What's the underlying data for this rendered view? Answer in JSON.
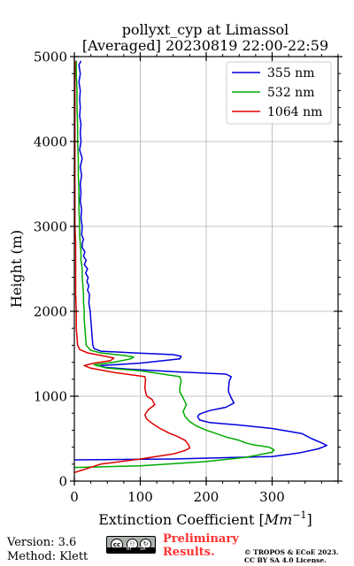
{
  "chart_data": {
    "type": "line",
    "title_line1": "pollyxt_cyp at Limassol",
    "title_line2": "[Averaged] 20230819 22:00-22:59",
    "xlabel_text": "Extinction Coefficient [",
    "xlabel_unit_base": "Mm",
    "xlabel_unit_exp": "−1",
    "xlabel_close": "]",
    "ylabel": "Height (m)",
    "xlim": [
      0,
      400
    ],
    "ylim": [
      0,
      5000
    ],
    "x_ticks": [
      0,
      100,
      200,
      300
    ],
    "y_ticks": [
      0,
      1000,
      2000,
      3000,
      4000,
      5000
    ],
    "x_tick_labels": [
      "0",
      "100",
      "200",
      "300"
    ],
    "y_tick_labels": [
      "0",
      "1000",
      "2000",
      "3000",
      "4000",
      "5000"
    ],
    "x_minor_step": 25,
    "y_minor_step": 200,
    "grid": true,
    "legend_position": "top-right",
    "series": [
      {
        "name": "355 nm",
        "color": "#0000dd",
        "points": [
          [
            0,
            250
          ],
          [
            150,
            260
          ],
          [
            300,
            290
          ],
          [
            340,
            330
          ],
          [
            370,
            380
          ],
          [
            383,
            420
          ],
          [
            375,
            450
          ],
          [
            360,
            500
          ],
          [
            345,
            560
          ],
          [
            300,
            620
          ],
          [
            250,
            660
          ],
          [
            205,
            690
          ],
          [
            190,
            720
          ],
          [
            187,
            760
          ],
          [
            190,
            790
          ],
          [
            205,
            830
          ],
          [
            230,
            870
          ],
          [
            242,
            920
          ],
          [
            238,
            980
          ],
          [
            234,
            1050
          ],
          [
            234,
            1100
          ],
          [
            235,
            1180
          ],
          [
            238,
            1230
          ],
          [
            230,
            1260
          ],
          [
            150,
            1290
          ],
          [
            80,
            1320
          ],
          [
            46,
            1340
          ],
          [
            40,
            1360
          ],
          [
            100,
            1390
          ],
          [
            160,
            1440
          ],
          [
            162,
            1470
          ],
          [
            150,
            1490
          ],
          [
            90,
            1510
          ],
          [
            40,
            1530
          ],
          [
            30,
            1560
          ],
          [
            28,
            1600
          ],
          [
            27,
            1700
          ],
          [
            26,
            1800
          ],
          [
            25,
            1900
          ],
          [
            24,
            2000
          ],
          [
            22,
            2100
          ],
          [
            23,
            2200
          ],
          [
            20,
            2250
          ],
          [
            22,
            2300
          ],
          [
            19,
            2350
          ],
          [
            21,
            2400
          ],
          [
            17,
            2450
          ],
          [
            20,
            2500
          ],
          [
            15,
            2550
          ],
          [
            18,
            2600
          ],
          [
            14,
            2650
          ],
          [
            16,
            2700
          ],
          [
            12,
            2750
          ],
          [
            12,
            2800
          ],
          [
            14,
            2850
          ],
          [
            11,
            2900
          ],
          [
            12,
            3000
          ],
          [
            10,
            3100
          ],
          [
            11,
            3200
          ],
          [
            9,
            3300
          ],
          [
            10,
            3400
          ],
          [
            9,
            3500
          ],
          [
            11,
            3600
          ],
          [
            9,
            3700
          ],
          [
            12,
            3800
          ],
          [
            8,
            3900
          ],
          [
            10,
            4000
          ],
          [
            9,
            4100
          ],
          [
            10,
            4200
          ],
          [
            8,
            4300
          ],
          [
            9,
            4400
          ],
          [
            8,
            4500
          ],
          [
            9,
            4600
          ],
          [
            7,
            4700
          ],
          [
            9,
            4800
          ],
          [
            7,
            4900
          ],
          [
            10,
            4950
          ]
        ]
      },
      {
        "name": "532 nm",
        "color": "#00aa00",
        "points": [
          [
            0,
            160
          ],
          [
            100,
            180
          ],
          [
            200,
            230
          ],
          [
            260,
            280
          ],
          [
            300,
            340
          ],
          [
            303,
            370
          ],
          [
            295,
            400
          ],
          [
            270,
            430
          ],
          [
            260,
            450
          ],
          [
            250,
            480
          ],
          [
            230,
            520
          ],
          [
            215,
            560
          ],
          [
            200,
            600
          ],
          [
            185,
            650
          ],
          [
            175,
            700
          ],
          [
            168,
            760
          ],
          [
            165,
            820
          ],
          [
            170,
            900
          ],
          [
            165,
            980
          ],
          [
            160,
            1050
          ],
          [
            160,
            1100
          ],
          [
            162,
            1180
          ],
          [
            160,
            1230
          ],
          [
            100,
            1300
          ],
          [
            50,
            1330
          ],
          [
            30,
            1370
          ],
          [
            60,
            1400
          ],
          [
            85,
            1440
          ],
          [
            90,
            1460
          ],
          [
            75,
            1480
          ],
          [
            40,
            1510
          ],
          [
            25,
            1540
          ],
          [
            18,
            1600
          ],
          [
            17,
            1700
          ],
          [
            16,
            1800
          ],
          [
            15,
            1900
          ],
          [
            15,
            2000
          ],
          [
            14,
            2100
          ],
          [
            14,
            2200
          ],
          [
            13,
            2300
          ],
          [
            12,
            2400
          ],
          [
            12,
            2500
          ],
          [
            10,
            2600
          ],
          [
            10,
            2700
          ],
          [
            9,
            2800
          ],
          [
            8,
            2900
          ],
          [
            8,
            3000
          ],
          [
            7,
            3200
          ],
          [
            7,
            3400
          ],
          [
            6,
            3600
          ],
          [
            6,
            3800
          ],
          [
            5,
            4000
          ],
          [
            5,
            4200
          ],
          [
            4,
            4400
          ],
          [
            4,
            4600
          ],
          [
            3,
            4800
          ],
          [
            3,
            4950
          ]
        ]
      },
      {
        "name": "1064 nm",
        "color": "#dd0000",
        "points": [
          [
            0,
            100
          ],
          [
            40,
            200
          ],
          [
            100,
            260
          ],
          [
            150,
            320
          ],
          [
            168,
            360
          ],
          [
            175,
            390
          ],
          [
            173,
            430
          ],
          [
            168,
            480
          ],
          [
            155,
            530
          ],
          [
            145,
            560
          ],
          [
            130,
            620
          ],
          [
            118,
            680
          ],
          [
            110,
            730
          ],
          [
            107,
            780
          ],
          [
            112,
            840
          ],
          [
            122,
            900
          ],
          [
            118,
            960
          ],
          [
            110,
            1000
          ],
          [
            108,
            1050
          ],
          [
            107,
            1100
          ],
          [
            108,
            1200
          ],
          [
            107,
            1230
          ],
          [
            60,
            1280
          ],
          [
            25,
            1330
          ],
          [
            15,
            1360
          ],
          [
            30,
            1390
          ],
          [
            55,
            1420
          ],
          [
            60,
            1450
          ],
          [
            40,
            1480
          ],
          [
            20,
            1510
          ],
          [
            8,
            1550
          ],
          [
            5,
            1600
          ],
          [
            4,
            1700
          ],
          [
            3,
            1800
          ],
          [
            3,
            2000
          ],
          [
            2,
            2200
          ],
          [
            2,
            2400
          ],
          [
            2,
            2600
          ],
          [
            2,
            2800
          ],
          [
            1,
            3000
          ],
          [
            1,
            3500
          ],
          [
            1,
            4000
          ],
          [
            1,
            4500
          ],
          [
            1,
            4950
          ]
        ]
      }
    ]
  },
  "footer": {
    "version": "Version: 3.6",
    "method": "Method: Klett",
    "preliminary_line1": "Preliminary",
    "preliminary_line2": "Results.",
    "copyright_line1": "© TROPOS & ECoE 2023.",
    "copyright_line2": "CC BY SA 4.0 License.",
    "license_badge_icon": "cc-by-sa-icon",
    "badge_by": "BY",
    "badge_sa": "SA"
  }
}
